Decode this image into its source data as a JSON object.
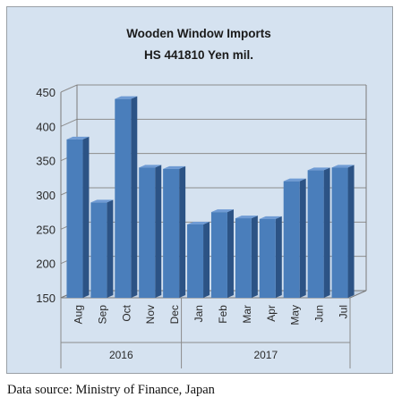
{
  "chart_data": {
    "type": "bar",
    "title": "Wooden Window Imports",
    "subtitle": "HS 441810 Yen mil.",
    "categories": [
      "Aug",
      "Sep",
      "Oct",
      "Nov",
      "Dec",
      "Jan",
      "Feb",
      "Mar",
      "Apr",
      "May",
      "Jun",
      "Jul"
    ],
    "groups": [
      {
        "label": "2016",
        "count": 5
      },
      {
        "label": "2017",
        "count": 7
      }
    ],
    "values": [
      381,
      289,
      440,
      340,
      338,
      257,
      275,
      266,
      265,
      320,
      336,
      340
    ],
    "ylim": [
      150,
      450
    ],
    "yticks": [
      150,
      200,
      250,
      300,
      350,
      400,
      450
    ],
    "grid": true,
    "colors": {
      "bar": "#4a7ebb",
      "bar_side": "#2c5385",
      "bar_top": "#6f9bd4",
      "background": "#d5e2f0",
      "grid": "#8c8c8c"
    }
  },
  "footer": {
    "source": "Data source: Ministry of Finance, Japan"
  }
}
